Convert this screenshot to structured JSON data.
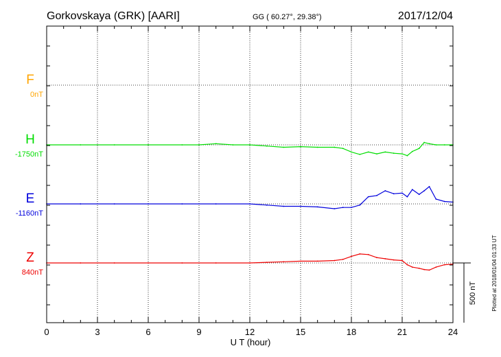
{
  "header": {
    "station": "Gorkovskaya (GRK)  [AARI]",
    "coords": "GG ( 60.27°,  29.38°)",
    "date": "2017/12/04"
  },
  "footer": {
    "plotted": "Plotted at 2018/01/04 01:33 UT"
  },
  "colors": {
    "F": "#ffa500",
    "H": "#00dd00",
    "E": "#0000dd",
    "Z": "#ee0000",
    "axis": "#000000"
  },
  "chart_data": {
    "type": "line",
    "title": "",
    "xlabel": "U T (hour)",
    "xlim": [
      0,
      24
    ],
    "xticks": [
      "0",
      "3",
      "6",
      "9",
      "12",
      "15",
      "18",
      "21",
      "24"
    ],
    "scale_bar": {
      "value": 500,
      "label": "500 nT"
    },
    "grid": true,
    "series": [
      {
        "name": "F",
        "baseline_label": "0nT",
        "t": [],
        "v": []
      },
      {
        "name": "H",
        "baseline_label": "-1750nT",
        "t": [
          0,
          2,
          4,
          6,
          8,
          9,
          10,
          11,
          12,
          13,
          14,
          15,
          16,
          17,
          17.5,
          18,
          18.5,
          19,
          19.5,
          20,
          20.5,
          21,
          21.3,
          21.6,
          22,
          22.3,
          22.6,
          23,
          23.5,
          24
        ],
        "v": [
          0,
          0,
          0,
          0,
          0,
          0,
          10,
          0,
          0,
          -10,
          -20,
          -15,
          -20,
          -20,
          -30,
          -60,
          -80,
          -60,
          -75,
          -60,
          -70,
          -75,
          -90,
          -55,
          -30,
          20,
          10,
          0,
          0,
          0
        ]
      },
      {
        "name": "E",
        "baseline_label": "-1160nT",
        "t": [
          0,
          2,
          4,
          6,
          8,
          10,
          12,
          13,
          14,
          15,
          16,
          17,
          17.5,
          18,
          18.5,
          19,
          19.5,
          20,
          20.5,
          21,
          21.3,
          21.6,
          22,
          22.3,
          22.6,
          23,
          23.5,
          24
        ],
        "v": [
          0,
          0,
          0,
          0,
          0,
          0,
          0,
          -10,
          -20,
          -20,
          -25,
          -40,
          -30,
          -30,
          -10,
          60,
          70,
          110,
          85,
          90,
          60,
          120,
          80,
          110,
          145,
          40,
          20,
          15
        ]
      },
      {
        "name": "Z",
        "baseline_label": "840nT",
        "t": [
          0,
          2,
          4,
          6,
          8,
          10,
          12,
          13,
          14,
          15,
          16,
          17,
          17.5,
          18,
          18.5,
          19,
          19.5,
          20,
          20.5,
          21,
          21.3,
          21.6,
          22,
          22.3,
          22.6,
          23,
          23.5,
          24
        ],
        "v": [
          0,
          0,
          0,
          0,
          0,
          0,
          0,
          5,
          10,
          15,
          15,
          20,
          30,
          55,
          75,
          70,
          45,
          35,
          25,
          20,
          -15,
          -35,
          -45,
          -55,
          -60,
          -35,
          -15,
          -10
        ]
      }
    ]
  }
}
